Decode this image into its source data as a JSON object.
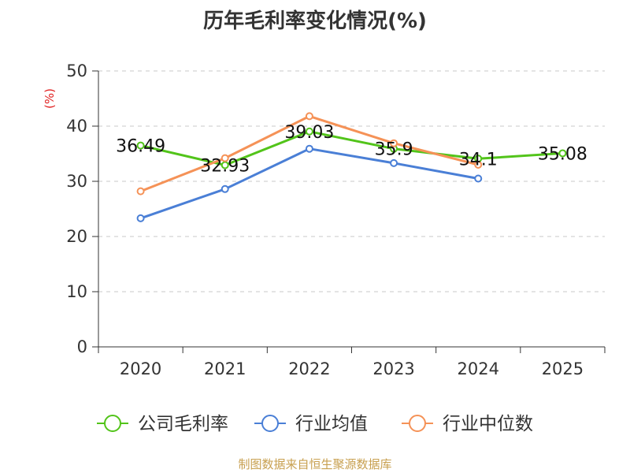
{
  "chart_data": {
    "type": "line",
    "title": "历年毛利率变化情况(%)",
    "ylabel": "(%)",
    "xlabel": "",
    "categories": [
      "2020",
      "2021",
      "2022",
      "2023",
      "2024",
      "2025"
    ],
    "ylim": [
      0,
      50
    ],
    "yticks": [
      0,
      10,
      20,
      30,
      40,
      50
    ],
    "grid": true,
    "legend_position": "bottom",
    "series": [
      {
        "name": "公司毛利率",
        "color": "#52c41a",
        "values": [
          36.49,
          32.93,
          39.03,
          35.9,
          34.1,
          35.08
        ],
        "show_labels": true
      },
      {
        "name": "行业均值",
        "color": "#4a7fd6",
        "values": [
          23.3,
          28.6,
          35.9,
          33.3,
          30.5,
          null
        ],
        "show_labels": false
      },
      {
        "name": "行业中位数",
        "color": "#f59257",
        "values": [
          28.2,
          34.2,
          41.8,
          36.9,
          33.0,
          null
        ],
        "show_labels": false
      }
    ]
  },
  "footer": {
    "source": "制图数据来自恒生聚源数据库"
  }
}
